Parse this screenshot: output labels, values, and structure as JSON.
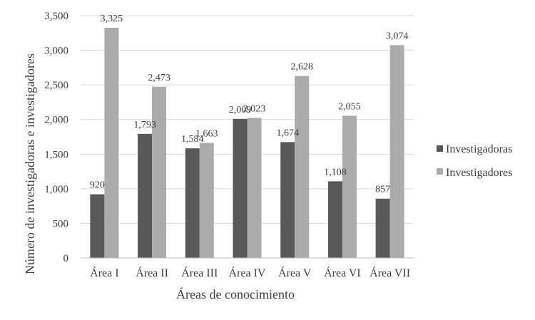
{
  "chart_data": {
    "type": "bar",
    "categories": [
      "Área I",
      "Área II",
      "Área III",
      "Área IV",
      "Área V",
      "Área VI",
      "Área VII"
    ],
    "series": [
      {
        "name": "Investigadoras",
        "values": [
          920,
          1793,
          1584,
          2009,
          1674,
          1108,
          857
        ],
        "labels": [
          "920",
          "1,793",
          "1,584",
          "2,009",
          "1,674",
          "1,108",
          "857"
        ],
        "color": "#595959"
      },
      {
        "name": "Investigadores",
        "values": [
          3325,
          2473,
          1663,
          2023,
          2628,
          2055,
          3074
        ],
        "labels": [
          "3,325",
          "2,473",
          "1,663",
          "2,023",
          "2,628",
          "2,055",
          "3,074"
        ],
        "color": "#ababab"
      }
    ],
    "xlabel": "Áreas de conocimiento",
    "ylabel": "Número de investigadoras e investigadores",
    "ylim": [
      0,
      3500
    ],
    "yticks": [
      0,
      500,
      1000,
      1500,
      2000,
      2500,
      3000,
      3500
    ],
    "ytick_labels": [
      "0",
      "500",
      "1,000",
      "1,500",
      "2,000",
      "2,500",
      "3,000",
      "3,500"
    ],
    "grid": true,
    "legend_position": "right"
  },
  "colors": {
    "axis": "#bfbfbf",
    "grid": "#d9d9d9",
    "text": "#404040"
  }
}
